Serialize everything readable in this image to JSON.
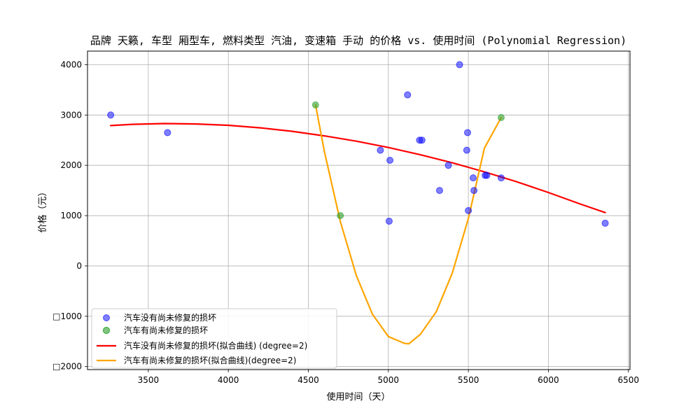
{
  "chart_data": {
    "type": "scatter",
    "title": "品牌 天籁, 车型 厢型车, 燃料类型 汽油, 变速箱 手动 的价格 vs. 使用时间 (Polynomial Regression)",
    "xlabel": "使用时间（天）",
    "ylabel": "价格（元）",
    "xlim": [
      3120,
      6510
    ],
    "ylim": [
      -2060,
      4270
    ],
    "xticks": [
      3500,
      4000,
      4500,
      5000,
      5500,
      6000,
      6500
    ],
    "yticks": [
      -2000,
      -1000,
      0,
      1000,
      2000,
      3000,
      4000
    ],
    "ytick_labels": [
      "□2000",
      "□1000",
      "0",
      "1000",
      "2000",
      "3000",
      "4000"
    ],
    "grid": true,
    "legend_position": "lower-left",
    "series": [
      {
        "name": "汽车没有尚未修复的损坏",
        "kind": "scatter",
        "color": "#0000ff",
        "points": [
          [
            3265,
            3000
          ],
          [
            3620,
            2650
          ],
          [
            4950,
            2300
          ],
          [
            5010,
            2100
          ],
          [
            5005,
            890
          ],
          [
            5120,
            3400
          ],
          [
            5195,
            2500
          ],
          [
            5210,
            2500
          ],
          [
            5320,
            1500
          ],
          [
            5375,
            2000
          ],
          [
            5445,
            4000
          ],
          [
            5490,
            2300
          ],
          [
            5495,
            2650
          ],
          [
            5500,
            1100
          ],
          [
            5530,
            1750
          ],
          [
            5535,
            1500
          ],
          [
            5605,
            1800
          ],
          [
            5615,
            1800
          ],
          [
            5705,
            1750
          ],
          [
            6355,
            850
          ]
        ]
      },
      {
        "name": "汽车有尚未修复的损坏",
        "kind": "scatter",
        "color": "#2ca02c",
        "points": [
          [
            4545,
            3200
          ],
          [
            4700,
            1000
          ],
          [
            5705,
            2950
          ]
        ]
      },
      {
        "name": "汽车没有尚未修复的损坏(拟合曲线) (degree=2)",
        "kind": "line",
        "color": "#ff0000",
        "x": [
          3265,
          3400,
          3600,
          3800,
          4000,
          4200,
          4400,
          4600,
          4800,
          5000,
          5200,
          5400,
          5600,
          5800,
          6000,
          6200,
          6355
        ],
        "y": [
          2790,
          2815,
          2830,
          2822,
          2795,
          2745,
          2675,
          2585,
          2480,
          2355,
          2210,
          2050,
          1870,
          1675,
          1460,
          1230,
          1060
        ]
      },
      {
        "name": "汽车有尚未修复的损坏(拟合曲线)(degree=2)",
        "kind": "line",
        "color": "#ffa500",
        "x": [
          4545,
          4600,
          4700,
          4800,
          4900,
          5000,
          5100,
          5128,
          5200,
          5300,
          5400,
          5500,
          5600,
          5705
        ],
        "y": [
          3200,
          2280,
          882,
          -193,
          -955,
          -1403,
          -1538,
          -1547,
          -1359,
          -906,
          -139,
          943,
          2340,
          2950
        ]
      }
    ]
  }
}
